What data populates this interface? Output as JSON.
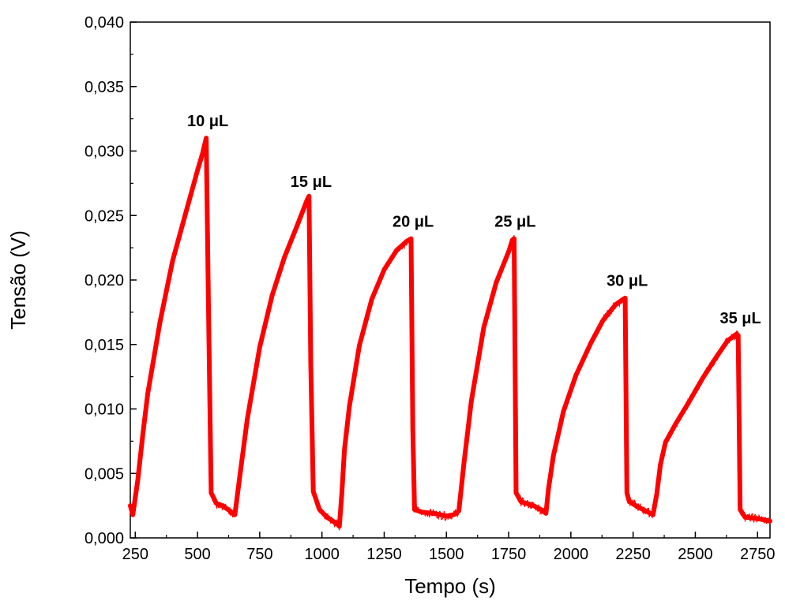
{
  "chart_data": {
    "type": "line",
    "xlabel": "Tempo (s)",
    "ylabel": "Tensão (V)",
    "xlim": [
      230,
      2800
    ],
    "ylim": [
      0.0,
      0.04
    ],
    "x_ticks": [
      250,
      500,
      750,
      1000,
      1250,
      1500,
      1750,
      2000,
      2250,
      2500,
      2750
    ],
    "x_tick_labels": [
      "250",
      "500",
      "750",
      "1000",
      "1250",
      "1500",
      "1750",
      "2000",
      "2250",
      "2500",
      "2750"
    ],
    "y_ticks": [
      0.0,
      0.005,
      0.01,
      0.015,
      0.02,
      0.025,
      0.03,
      0.035,
      0.04
    ],
    "y_tick_labels": [
      "0,000",
      "0,005",
      "0,010",
      "0,015",
      "0,020",
      "0,025",
      "0,030",
      "0,035",
      "0,040"
    ],
    "grid": false,
    "line_color": "#ff0000",
    "series": [
      {
        "x": [
          230,
          240,
          260,
          280,
          300,
          350,
          400,
          450,
          500,
          520,
          535,
          545,
          555,
          575,
          600,
          630,
          650,
          670,
          700,
          750,
          800,
          850,
          900,
          940,
          948,
          955,
          965,
          990,
          1020,
          1060,
          1070,
          1080,
          1090,
          1110,
          1150,
          1200,
          1250,
          1300,
          1340,
          1358,
          1365,
          1372,
          1400,
          1450,
          1500,
          1530,
          1550,
          1570,
          1600,
          1650,
          1700,
          1750,
          1765,
          1772,
          1780,
          1800,
          1850,
          1880,
          1900,
          1910,
          1930,
          1970,
          2020,
          2080,
          2130,
          2180,
          2210,
          2218,
          2225,
          2235,
          2270,
          2300,
          2330,
          2345,
          2360,
          2380,
          2420,
          2470,
          2530,
          2580,
          2630,
          2665,
          2672,
          2680,
          2700,
          2750,
          2800
        ],
        "y": [
          0.0025,
          0.0018,
          0.0045,
          0.008,
          0.0112,
          0.0168,
          0.0215,
          0.025,
          0.0285,
          0.0298,
          0.031,
          0.0165,
          0.0035,
          0.0027,
          0.0025,
          0.0021,
          0.0018,
          0.0048,
          0.0092,
          0.0148,
          0.0188,
          0.0218,
          0.0242,
          0.0262,
          0.0265,
          0.0135,
          0.0036,
          0.0022,
          0.0016,
          0.0011,
          0.0009,
          0.0035,
          0.0068,
          0.0102,
          0.0149,
          0.0185,
          0.0208,
          0.0223,
          0.023,
          0.0232,
          0.0085,
          0.0022,
          0.002,
          0.0019,
          0.0017,
          0.0018,
          0.0021,
          0.0057,
          0.0106,
          0.0163,
          0.0198,
          0.0222,
          0.0231,
          0.0232,
          0.0035,
          0.0028,
          0.0025,
          0.0022,
          0.0019,
          0.0038,
          0.0064,
          0.0098,
          0.0126,
          0.0151,
          0.0169,
          0.0181,
          0.0185,
          0.0186,
          0.0035,
          0.0028,
          0.0024,
          0.0021,
          0.0018,
          0.0034,
          0.0057,
          0.0074,
          0.0088,
          0.0104,
          0.0124,
          0.0139,
          0.0153,
          0.0158,
          0.0157,
          0.0022,
          0.0016,
          0.0015,
          0.0013
        ]
      }
    ],
    "annotations": [
      {
        "text": "10 μL",
        "x": 535,
        "y": 0.0315
      },
      {
        "text": "15 μL",
        "x": 950,
        "y": 0.0268
      },
      {
        "text": "20 μL",
        "x": 1360,
        "y": 0.0237
      },
      {
        "text": "25 μL",
        "x": 1770,
        "y": 0.0237
      },
      {
        "text": "30 μL",
        "x": 2220,
        "y": 0.0191
      },
      {
        "text": "35 μL",
        "x": 2675,
        "y": 0.0162
      }
    ]
  }
}
